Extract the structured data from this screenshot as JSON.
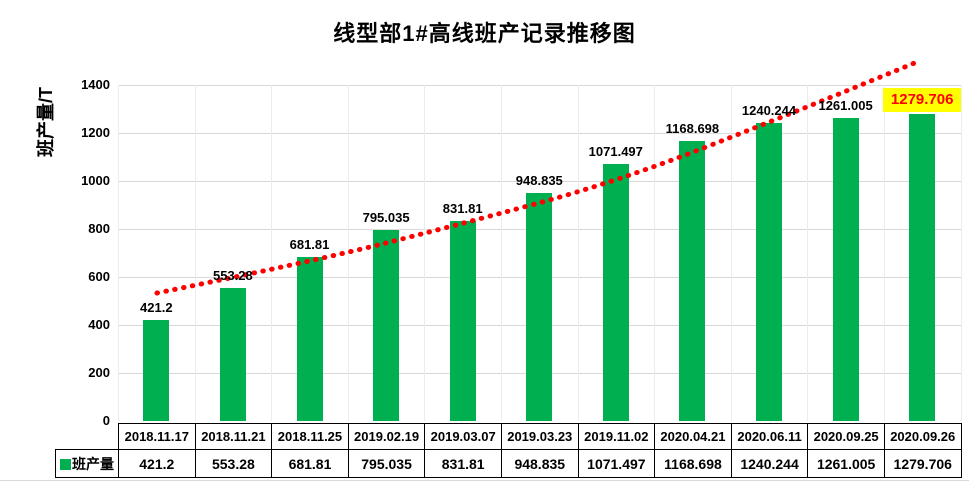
{
  "title": "线型部1#高线班产记录推移图",
  "chart_data": {
    "type": "bar",
    "title": "线型部1#高线班产记录推移图",
    "xlabel": "",
    "ylabel": "班产量/T",
    "ylim": [
      0,
      1400
    ],
    "yticks": [
      0,
      200,
      400,
      600,
      800,
      1000,
      1200,
      1400
    ],
    "grid": true,
    "legend_position": "bottom-table",
    "categories": [
      "2018.11.17",
      "2018.11.21",
      "2018.11.25",
      "2019.02.19",
      "2019.03.07",
      "2019.03.23",
      "2019.11.02",
      "2020.04.21",
      "2020.06.11",
      "2020.09.25",
      "2020.09.26"
    ],
    "series": [
      {
        "name": "班产量",
        "values": [
          421.2,
          553.28,
          681.81,
          795.035,
          831.81,
          948.835,
          1071.497,
          1168.698,
          1240.244,
          1261.005,
          1279.706
        ]
      }
    ],
    "data_labels": [
      "421.2",
      "553.28",
      "681.81",
      "795.035",
      "831.81",
      "948.835",
      "1071.497",
      "1168.698",
      "1240.244",
      "1261.005",
      "1279.706"
    ],
    "trendline": {
      "style": "dotted",
      "color": "#FF0000"
    },
    "highlight_last": {
      "index": 10,
      "background": "#FFFF00",
      "text_color": "#FF0000"
    }
  },
  "legend": {
    "swatch_icon": "green-square-icon",
    "label": "班产量"
  },
  "colors": {
    "bar": "#00B050",
    "trendline": "#FF0000",
    "gridline": "#D9D9D9",
    "highlight_bg": "#FFFF00",
    "highlight_text": "#FF0000",
    "text": "#000000",
    "table_border": "#000000"
  }
}
